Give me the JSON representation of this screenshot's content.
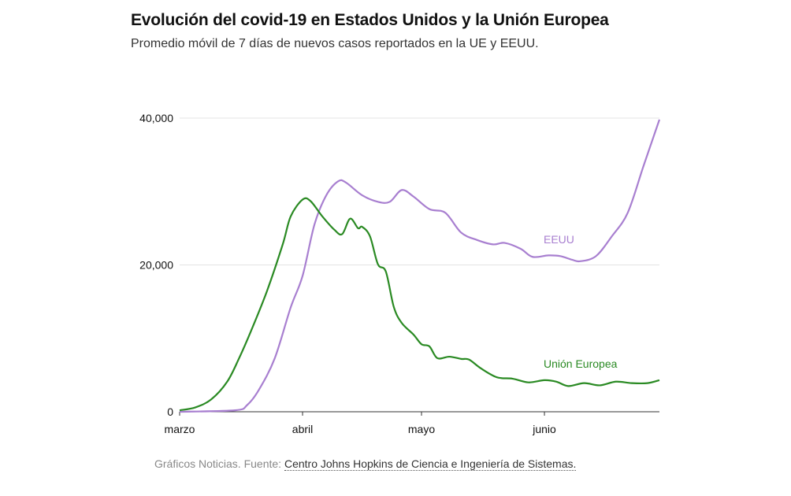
{
  "chart_data": {
    "type": "line",
    "title": "Evolución del covid-19 en Estados Unidos y la Unión Europea",
    "subtitle": "Promedio móvil de 7 días de nuevos casos reportados en la UE y EEUU.",
    "xlabel": "",
    "ylabel": "",
    "x_ticks": [
      {
        "date": "03-01",
        "label": "marzo"
      },
      {
        "date": "04-01",
        "label": "abril"
      },
      {
        "date": "05-01",
        "label": "mayo"
      },
      {
        "date": "06-01",
        "label": "junio"
      }
    ],
    "xlim": [
      "03-01",
      "06-30"
    ],
    "y_ticks": [
      {
        "value": 0,
        "label": "0"
      },
      {
        "value": 20000,
        "label": "20,000"
      },
      {
        "value": 40000,
        "label": "40,000"
      }
    ],
    "ylim": [
      0,
      40000
    ],
    "grid": "horizontal",
    "series": [
      {
        "name": "EEUU",
        "color": "#a87fd0",
        "points": [
          [
            "03-01",
            0
          ],
          [
            "03-15",
            200
          ],
          [
            "03-18",
            900
          ],
          [
            "03-21",
            3000
          ],
          [
            "03-25",
            7300
          ],
          [
            "03-29",
            14200
          ],
          [
            "04-01",
            18500
          ],
          [
            "04-04",
            25500
          ],
          [
            "04-07",
            29500
          ],
          [
            "04-10",
            31400
          ],
          [
            "04-12",
            31200
          ],
          [
            "04-16",
            29500
          ],
          [
            "04-20",
            28600
          ],
          [
            "04-23",
            28600
          ],
          [
            "04-26",
            30200
          ],
          [
            "04-29",
            29300
          ],
          [
            "05-03",
            27600
          ],
          [
            "05-07",
            27100
          ],
          [
            "05-11",
            24400
          ],
          [
            "05-15",
            23400
          ],
          [
            "05-19",
            22800
          ],
          [
            "05-22",
            23000
          ],
          [
            "05-26",
            22200
          ],
          [
            "05-29",
            21100
          ],
          [
            "06-02",
            21300
          ],
          [
            "06-05",
            21200
          ],
          [
            "06-08",
            20700
          ],
          [
            "06-10",
            20500
          ],
          [
            "06-14",
            21200
          ],
          [
            "06-18",
            23900
          ],
          [
            "06-22",
            27100
          ],
          [
            "06-26",
            33500
          ],
          [
            "06-30",
            39800
          ]
        ]
      },
      {
        "name": "Unión Europea",
        "color": "#2a8a23",
        "points": [
          [
            "03-01",
            200
          ],
          [
            "03-05",
            600
          ],
          [
            "03-09",
            1700
          ],
          [
            "03-13",
            4100
          ],
          [
            "03-16",
            7300
          ],
          [
            "03-19",
            11000
          ],
          [
            "03-23",
            16400
          ],
          [
            "03-27",
            22800
          ],
          [
            "03-29",
            26600
          ],
          [
            "04-01",
            28900
          ],
          [
            "04-03",
            28700
          ],
          [
            "04-06",
            26600
          ],
          [
            "04-09",
            24800
          ],
          [
            "04-11",
            24200
          ],
          [
            "04-13",
            26300
          ],
          [
            "04-15",
            25000
          ],
          [
            "04-16",
            25200
          ],
          [
            "04-18",
            23900
          ],
          [
            "04-20",
            20100
          ],
          [
            "04-22",
            19100
          ],
          [
            "04-24",
            14300
          ],
          [
            "04-26",
            12100
          ],
          [
            "04-29",
            10500
          ],
          [
            "05-01",
            9200
          ],
          [
            "05-03",
            8900
          ],
          [
            "05-05",
            7300
          ],
          [
            "05-08",
            7500
          ],
          [
            "05-11",
            7200
          ],
          [
            "05-13",
            7100
          ],
          [
            "05-16",
            5900
          ],
          [
            "05-20",
            4700
          ],
          [
            "05-24",
            4500
          ],
          [
            "05-28",
            4000
          ],
          [
            "06-01",
            4300
          ],
          [
            "06-04",
            4100
          ],
          [
            "06-07",
            3500
          ],
          [
            "06-11",
            3900
          ],
          [
            "06-15",
            3600
          ],
          [
            "06-19",
            4100
          ],
          [
            "06-23",
            3900
          ],
          [
            "06-27",
            3900
          ],
          [
            "06-30",
            4300
          ]
        ]
      }
    ]
  },
  "footer": {
    "prefix": "Gráficos Noticias. Fuente: ",
    "source_link": "Centro Johns Hopkins de Ciencia e Ingeniería de Sistemas."
  }
}
